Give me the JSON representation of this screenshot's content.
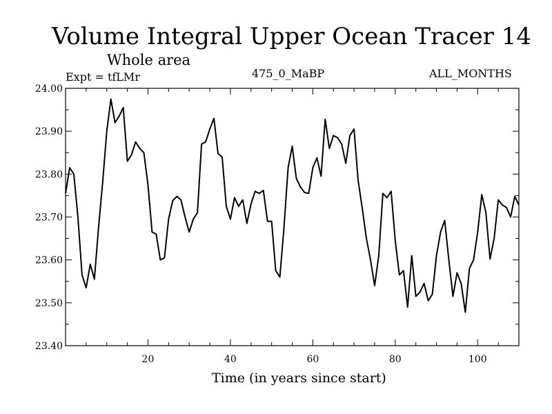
{
  "chart_data": {
    "type": "line",
    "title": "Volume Integral Upper Ocean Tracer 14",
    "subtitle": "Whole area",
    "expt_label": "Expt = tfLMr",
    "period_label": "475_0_MaBP",
    "months_label": "ALL_MONTHS",
    "xlabel": "Time (in years since start)",
    "ylabel": "",
    "xlim": [
      0,
      110
    ],
    "ylim": [
      23.4,
      24.0
    ],
    "x_ticks": [
      20,
      40,
      60,
      80,
      100
    ],
    "y_ticks": [
      "23.40",
      "23.50",
      "23.60",
      "23.70",
      "23.80",
      "23.90",
      "24.00"
    ],
    "series": [
      {
        "name": "Tracer 14",
        "color": "#000000",
        "x": [
          0,
          1,
          2,
          3,
          4,
          5,
          6,
          7,
          8,
          9,
          10,
          11,
          12,
          13,
          14,
          15,
          16,
          17,
          18,
          19,
          20,
          21,
          22,
          23,
          24,
          25,
          26,
          27,
          28,
          29,
          30,
          31,
          32,
          33,
          34,
          35,
          36,
          37,
          38,
          39,
          40,
          41,
          42,
          43,
          44,
          45,
          46,
          47,
          48,
          49,
          50,
          51,
          52,
          53,
          54,
          55,
          56,
          57,
          58,
          59,
          60,
          61,
          62,
          63,
          64,
          65,
          66,
          67,
          68,
          69,
          70,
          71,
          72,
          73,
          74,
          75,
          76,
          77,
          78,
          79,
          80,
          81,
          82,
          83,
          84,
          85,
          86,
          87,
          88,
          89,
          90,
          91,
          92,
          93,
          94,
          95,
          96,
          97,
          98,
          99,
          100,
          101,
          102,
          103,
          104,
          105,
          106,
          107,
          108,
          109,
          110
        ],
        "values": [
          23.755,
          23.815,
          23.8,
          23.7,
          23.565,
          23.535,
          23.59,
          23.555,
          23.675,
          23.78,
          23.9,
          23.975,
          23.92,
          23.935,
          23.955,
          23.83,
          23.845,
          23.875,
          23.86,
          23.85,
          23.775,
          23.665,
          23.66,
          23.6,
          23.605,
          23.695,
          23.738,
          23.748,
          23.74,
          23.7,
          23.665,
          23.695,
          23.71,
          23.87,
          23.875,
          23.905,
          23.93,
          23.848,
          23.84,
          23.725,
          23.695,
          23.745,
          23.725,
          23.74,
          23.685,
          23.73,
          23.76,
          23.755,
          23.762,
          23.69,
          23.69,
          23.575,
          23.56,
          23.675,
          23.815,
          23.865,
          23.79,
          23.77,
          23.757,
          23.755,
          23.815,
          23.838,
          23.795,
          23.928,
          23.86,
          23.89,
          23.885,
          23.87,
          23.825,
          23.89,
          23.905,
          23.785,
          23.72,
          23.65,
          23.6,
          23.54,
          23.61,
          23.755,
          23.745,
          23.76,
          23.645,
          23.565,
          23.575,
          23.49,
          23.61,
          23.515,
          23.525,
          23.545,
          23.505,
          23.52,
          23.61,
          23.665,
          23.692,
          23.6,
          23.515,
          23.57,
          23.545,
          23.478,
          23.58,
          23.6,
          23.665,
          23.752,
          23.71,
          23.602,
          23.65,
          23.74,
          23.728,
          23.722,
          23.7,
          23.748,
          23.728
        ]
      }
    ]
  }
}
